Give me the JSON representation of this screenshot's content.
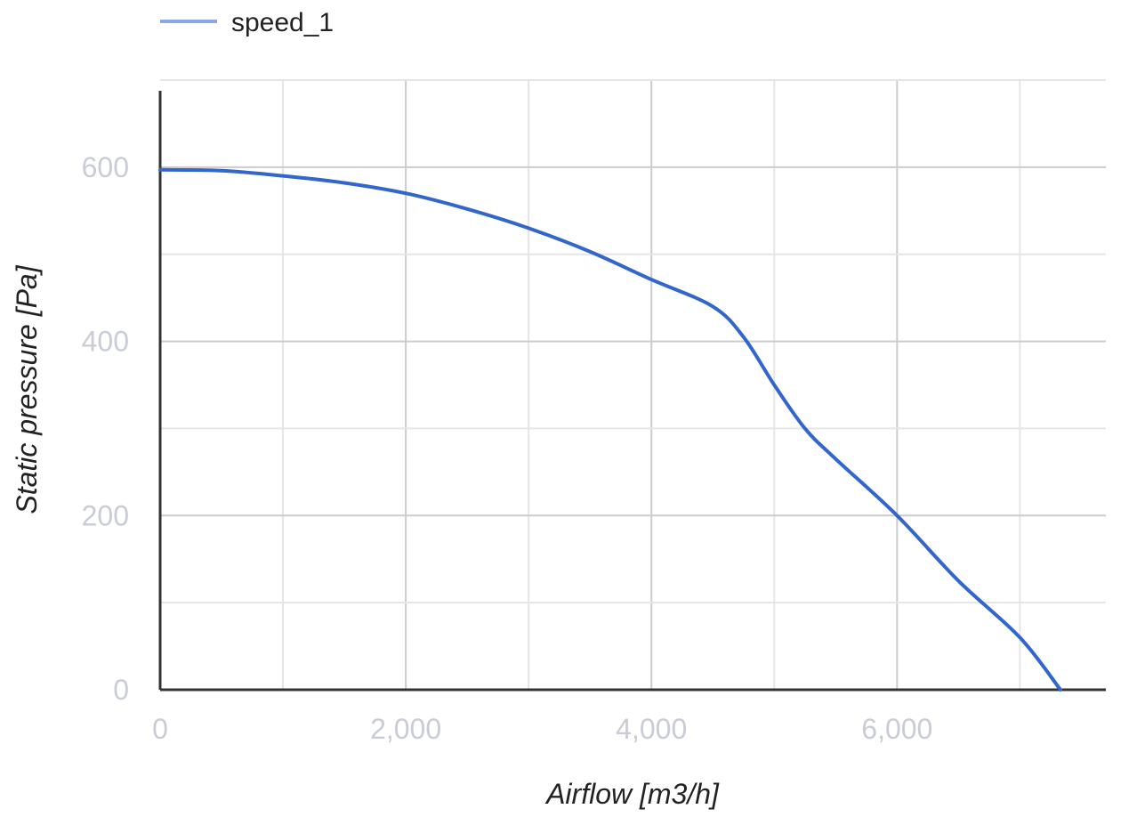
{
  "chart_data": {
    "type": "line",
    "title": "",
    "xlabel": "Airflow [m3/h]",
    "ylabel": "Static pressure [Pa]",
    "xlim": [
      0,
      7700
    ],
    "ylim": [
      0,
      700
    ],
    "x_ticks": [
      0,
      2000,
      4000,
      6000
    ],
    "x_tick_labels": [
      "0",
      "2,000",
      "4,000",
      "6,000"
    ],
    "x_minor_grid": [
      1000,
      3000,
      5000,
      7000
    ],
    "y_ticks": [
      0,
      200,
      400,
      600
    ],
    "y_tick_labels": [
      "0",
      "200",
      "400",
      "600"
    ],
    "y_minor_grid": [
      100,
      300,
      500,
      700
    ],
    "grid": true,
    "legend_position": "top-left",
    "colors": {
      "series": "#3366cc",
      "legend_swatch": "#8aa7e8",
      "grid": "#e5e5e5",
      "major_grid": "#cccccc",
      "axis": "#333333",
      "tick_text": "#c9ccd6"
    },
    "series": [
      {
        "name": "speed_1",
        "x": [
          0,
          500,
          1000,
          1500,
          2000,
          2500,
          3000,
          3500,
          4000,
          4500,
          4750,
          5000,
          5250,
          5500,
          6000,
          6500,
          7000,
          7330
        ],
        "y": [
          597,
          596,
          590,
          582,
          570,
          552,
          530,
          503,
          471,
          440,
          405,
          350,
          300,
          265,
          200,
          125,
          60,
          0
        ]
      }
    ]
  }
}
